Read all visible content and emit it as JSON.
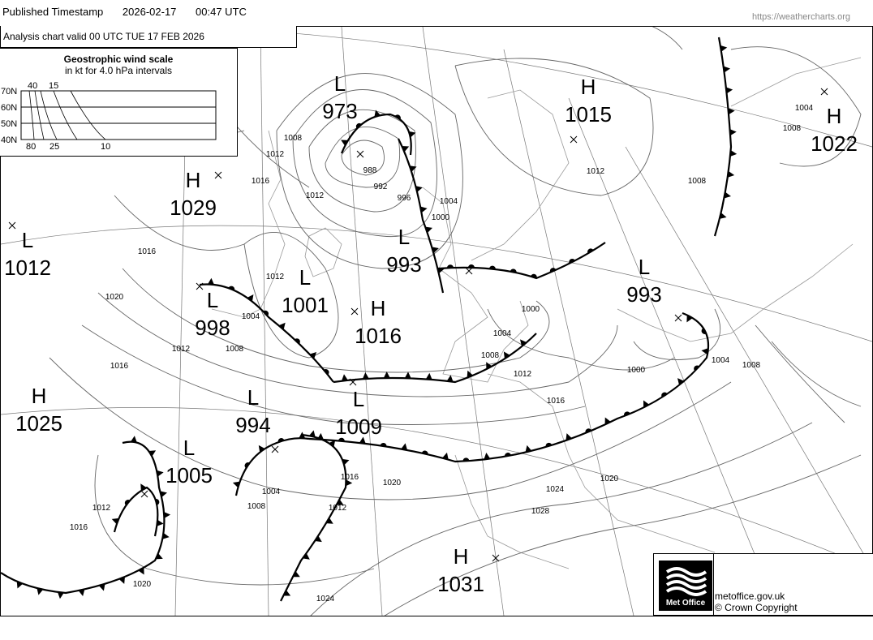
{
  "header": {
    "label": "Published Timestamp",
    "date": "2026-02-17",
    "time": "00:47  UTC",
    "url": "https://weathercharts.org"
  },
  "chart_title": "Analysis chart  valid 00 UTC TUE 17  FEB 2026",
  "wind_scale": {
    "title": "Geostrophic wind scale",
    "subtitle": "in kt for 4.0 hPa intervals",
    "lat_labels": [
      "70N",
      "60N",
      "50N",
      "40N"
    ],
    "top_labels": [
      "40",
      "15"
    ],
    "bottom_labels": [
      "80",
      "25",
      "10"
    ]
  },
  "pressure_centres": [
    {
      "type": "L",
      "value": "973"
    },
    {
      "type": "H",
      "value": "1015"
    },
    {
      "type": "H",
      "value": "1022"
    },
    {
      "type": "H",
      "value": "1029"
    },
    {
      "type": "L",
      "value": "1012"
    },
    {
      "type": "L",
      "value": "993"
    },
    {
      "type": "L",
      "value": "998"
    },
    {
      "type": "L",
      "value": "1001"
    },
    {
      "type": "H",
      "value": "1016"
    },
    {
      "type": "L",
      "value": "993"
    },
    {
      "type": "H",
      "value": "1025"
    },
    {
      "type": "L",
      "value": "994"
    },
    {
      "type": "L",
      "value": "1009"
    },
    {
      "type": "L",
      "value": "1005"
    },
    {
      "type": "H",
      "value": "1031"
    }
  ],
  "isobar_labels": [
    "988",
    "992",
    "996",
    "1000",
    "1004",
    "1008",
    "1012",
    "1016",
    "1004",
    "1008",
    "1012",
    "1016",
    "1020",
    "1012",
    "1016",
    "1012",
    "1008",
    "1004",
    "1000",
    "1004",
    "1008",
    "1012",
    "1016",
    "1020",
    "1024",
    "1028",
    "1020",
    "1016",
    "1012",
    "1004",
    "1008",
    "1012",
    "1016",
    "1020",
    "1024",
    "1008",
    "1012",
    "1004",
    "1008",
    "1000"
  ],
  "fronts": [
    {
      "type": "occluded"
    },
    {
      "type": "cold"
    },
    {
      "type": "occluded"
    },
    {
      "type": "cold"
    },
    {
      "type": "warm"
    },
    {
      "type": "stationary"
    },
    {
      "type": "cold"
    },
    {
      "type": "occluded"
    },
    {
      "type": "occluded"
    },
    {
      "type": "cold"
    },
    {
      "type": "cold"
    }
  ],
  "footer": {
    "logo": "Met Office",
    "site": "metoffice.gov.uk",
    "copyright": "© Crown Copyright"
  }
}
